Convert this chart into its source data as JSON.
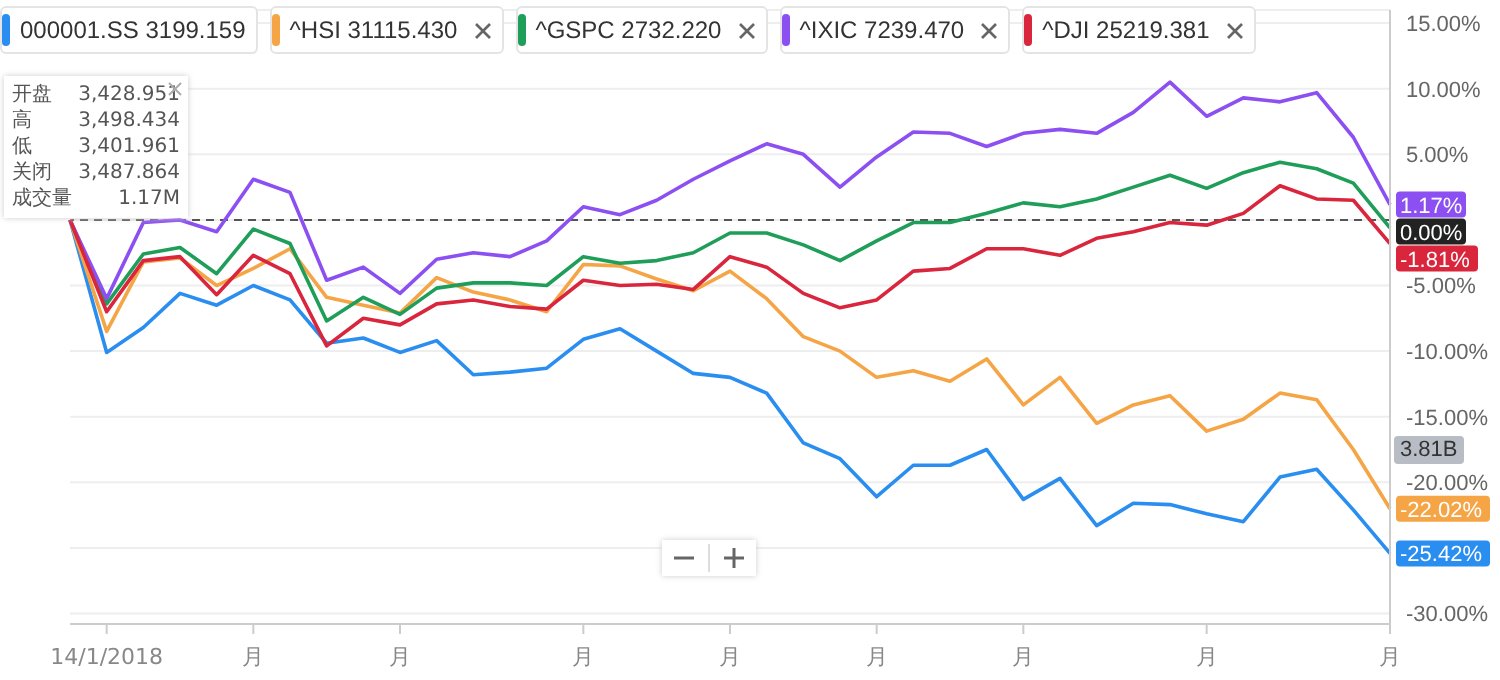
{
  "chart_data": {
    "type": "line",
    "categories": [
      null,
      "14/1/2018",
      null,
      null,
      null,
      "月",
      null,
      null,
      null,
      "月",
      null,
      null,
      null,
      null,
      "月",
      null,
      null,
      null,
      "月",
      null,
      null,
      null,
      "月",
      null,
      null,
      null,
      "月",
      null,
      null,
      null,
      null,
      "月",
      null,
      null,
      null,
      null,
      "月"
    ],
    "series": [
      {
        "name": "000001.SS 3199.159",
        "color": "#2a8ef0",
        "values": [
          0,
          -10.1,
          -8.2,
          -5.6,
          -6.5,
          -5.0,
          -6.1,
          -9.4,
          -9.0,
          -10.1,
          -9.2,
          -11.8,
          -11.6,
          -11.3,
          -9.1,
          -8.3,
          -10.0,
          -11.7,
          -12.0,
          -13.2,
          -17.0,
          -18.2,
          -21.1,
          -18.7,
          -18.7,
          -17.5,
          -21.3,
          -19.7,
          -23.3,
          -21.6,
          -21.7,
          -22.4,
          -23.0,
          -19.6,
          -19.0,
          -22.1,
          -25.42
        ],
        "value_labels": [
          null,
          null,
          null,
          null,
          null,
          null,
          null,
          null,
          null,
          null,
          null,
          null,
          null,
          null,
          null,
          null,
          null,
          null,
          null,
          null,
          null,
          null,
          null,
          null,
          null,
          null,
          null,
          null,
          null,
          null,
          null,
          null,
          null,
          null,
          null,
          null,
          "-25.42%"
        ]
      },
      {
        "name": "^HSI 31115.430",
        "color": "#f5a545",
        "values": [
          0,
          -8.5,
          -3.2,
          -2.9,
          -5.0,
          -3.7,
          -2.2,
          -5.9,
          -6.5,
          -7.1,
          -4.4,
          -5.5,
          -6.1,
          -7.0,
          -3.4,
          -3.5,
          -4.5,
          -5.4,
          -3.9,
          -6.0,
          -8.9,
          -10.0,
          -12.0,
          -11.5,
          -12.3,
          -10.6,
          -14.1,
          -12.0,
          -15.5,
          -14.1,
          -13.4,
          -16.1,
          -15.2,
          -13.2,
          -13.7,
          -17.5,
          -22.02
        ],
        "value_labels": [
          null,
          null,
          null,
          null,
          null,
          null,
          null,
          null,
          null,
          null,
          null,
          null,
          null,
          null,
          null,
          null,
          null,
          null,
          null,
          null,
          null,
          null,
          null,
          null,
          null,
          null,
          null,
          null,
          null,
          null,
          null,
          null,
          null,
          null,
          null,
          null,
          "-22.02%"
        ]
      },
      {
        "name": "^GSPC 2732.220",
        "color": "#1f9e5a",
        "values": [
          0,
          -6.4,
          -2.6,
          -2.1,
          -4.1,
          -0.7,
          -1.8,
          -7.7,
          -5.9,
          -7.2,
          -5.2,
          -4.8,
          -4.8,
          -5.0,
          -2.8,
          -3.3,
          -3.1,
          -2.5,
          -1.0,
          -1.0,
          -1.9,
          -3.1,
          -1.6,
          -0.2,
          -0.2,
          0.5,
          1.3,
          1.0,
          1.6,
          2.5,
          3.4,
          2.4,
          3.6,
          4.4,
          3.9,
          2.8,
          -0.6
        ]
      },
      {
        "name": "^IXIC 7239.470",
        "color": "#8c4ff2",
        "values": [
          0,
          -6.0,
          -0.2,
          0.0,
          -0.9,
          3.1,
          2.1,
          -4.6,
          -3.6,
          -5.6,
          -3.0,
          -2.5,
          -2.8,
          -1.6,
          1.0,
          0.4,
          1.5,
          3.1,
          4.5,
          5.8,
          5.0,
          2.5,
          4.8,
          6.7,
          6.6,
          5.6,
          6.6,
          6.9,
          6.6,
          8.2,
          10.5,
          7.9,
          9.3,
          9.0,
          9.7,
          6.3,
          1.17
        ],
        "value_labels": [
          null,
          null,
          null,
          null,
          null,
          null,
          null,
          null,
          null,
          null,
          null,
          null,
          null,
          null,
          null,
          null,
          null,
          null,
          null,
          null,
          null,
          null,
          null,
          null,
          null,
          null,
          null,
          null,
          null,
          null,
          null,
          null,
          null,
          null,
          null,
          null,
          "1.17%"
        ]
      },
      {
        "name": "^DJI 25219.381",
        "color": "#d9263c",
        "values": [
          0,
          -7.0,
          -3.1,
          -2.8,
          -5.7,
          -2.7,
          -4.1,
          -9.6,
          -7.5,
          -8.0,
          -6.4,
          -6.1,
          -6.6,
          -6.8,
          -4.6,
          -5.0,
          -4.9,
          -5.3,
          -2.8,
          -3.6,
          -5.6,
          -6.7,
          -6.1,
          -3.9,
          -3.7,
          -2.2,
          -2.2,
          -2.7,
          -1.4,
          -0.9,
          -0.2,
          -0.4,
          0.5,
          2.6,
          1.6,
          1.5,
          -1.81
        ],
        "value_labels": [
          null,
          null,
          null,
          null,
          null,
          null,
          null,
          null,
          null,
          null,
          null,
          null,
          null,
          null,
          null,
          null,
          null,
          null,
          null,
          null,
          null,
          null,
          null,
          null,
          null,
          null,
          null,
          null,
          null,
          null,
          null,
          null,
          null,
          null,
          null,
          null,
          "-1.81%"
        ]
      }
    ],
    "ylim": [
      -30.8,
      16
    ],
    "yticks": [
      {
        "value": 15,
        "label": "15.00%"
      },
      {
        "value": 10,
        "label": "10.00%"
      },
      {
        "value": 5,
        "label": "5.00%"
      },
      {
        "value": 0,
        "label": null
      },
      {
        "value": -5,
        "label": "-5.00%"
      },
      {
        "value": -10,
        "label": "-10.00%"
      },
      {
        "value": -15,
        "label": "-15.00%"
      },
      {
        "value": -20,
        "label": "-20.00%"
      },
      {
        "value": -25,
        "label": null
      },
      {
        "value": -30,
        "label": "-30.00%"
      }
    ],
    "ref_lines": [
      {
        "axis": "y",
        "value": 0,
        "label": "0.00%",
        "color": "#555555",
        "line_style": "dashed"
      }
    ],
    "annotations": [
      "开盘 3,428.951",
      "高 3,498.434",
      "低 3,401.961",
      "关闭 3,487.864",
      "成交量 1.17M",
      "3.81B"
    ],
    "grid": "y",
    "legend": "top left",
    "marker": "none",
    "line_style": "solid"
  }
}
